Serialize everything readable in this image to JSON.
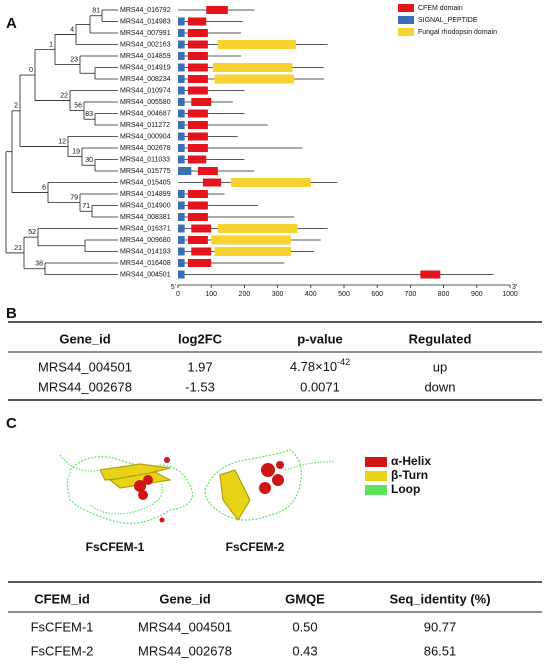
{
  "panel_labels": [
    "A",
    "B",
    "C"
  ],
  "chart_data": {
    "type": "domain",
    "genes": [
      "MRS44_016792",
      "MRS44_014983",
      "MRS44_007991",
      "MRS44_002163",
      "MRS44_014859",
      "MRS44_014919",
      "MRS44_008234",
      "MRS44_010974",
      "MRS44_005580",
      "MRS44_004687",
      "MRS44_011272",
      "MRS44_000904",
      "MRS44_002678",
      "MRS44_011033",
      "MRS44_015775",
      "MRS44_015405",
      "MRS44_014899",
      "MRS44_014900",
      "MRS44_008381",
      "MRS44_016371",
      "MRS44_009680",
      "MRS44_014193",
      "MRS44_016408",
      "MRS44_004501"
    ],
    "lengths": [
      230,
      195,
      190,
      450,
      190,
      440,
      440,
      200,
      165,
      200,
      270,
      180,
      375,
      200,
      230,
      480,
      140,
      240,
      350,
      450,
      430,
      410,
      320,
      950
    ],
    "series": [
      {
        "name": "CFEM domain",
        "color": "#e3141b",
        "values": [
          [
            85,
            150
          ],
          [
            30,
            85
          ],
          [
            30,
            90
          ],
          [
            30,
            90
          ],
          [
            30,
            90
          ],
          [
            30,
            90
          ],
          [
            30,
            90
          ],
          [
            30,
            90
          ],
          [
            40,
            100
          ],
          [
            30,
            90
          ],
          [
            30,
            90
          ],
          [
            30,
            90
          ],
          [
            30,
            90
          ],
          [
            30,
            85
          ],
          [
            60,
            120
          ],
          [
            75,
            130
          ],
          [
            30,
            90
          ],
          [
            30,
            90
          ],
          [
            30,
            90
          ],
          [
            40,
            100
          ],
          [
            30,
            90
          ],
          [
            40,
            100
          ],
          [
            30,
            100
          ],
          [
            730,
            790
          ]
        ]
      },
      {
        "name": "SIGNAL_PEPTIDE",
        "color": "#3a6fb5",
        "values": [
          null,
          [
            0,
            20
          ],
          [
            0,
            20
          ],
          [
            0,
            20
          ],
          [
            0,
            20
          ],
          [
            0,
            20
          ],
          [
            0,
            20
          ],
          [
            0,
            20
          ],
          [
            0,
            20
          ],
          [
            0,
            20
          ],
          [
            0,
            20
          ],
          [
            0,
            20
          ],
          [
            0,
            20
          ],
          [
            0,
            20
          ],
          [
            0,
            40
          ],
          null,
          [
            0,
            20
          ],
          [
            0,
            20
          ],
          [
            0,
            20
          ],
          [
            0,
            20
          ],
          [
            0,
            20
          ],
          [
            0,
            20
          ],
          [
            0,
            20
          ],
          [
            0,
            20
          ]
        ]
      },
      {
        "name": "Fungal rhodopsin domain",
        "color": "#f7d330",
        "values": [
          null,
          null,
          null,
          [
            120,
            355
          ],
          null,
          [
            105,
            345
          ],
          [
            110,
            350
          ],
          null,
          null,
          null,
          null,
          null,
          null,
          null,
          null,
          [
            160,
            400
          ],
          null,
          null,
          null,
          [
            120,
            360
          ],
          [
            100,
            340
          ],
          [
            110,
            340
          ],
          null,
          null
        ]
      }
    ],
    "bootstrap": [
      81,
      4,
      23,
      1,
      22,
      56,
      83,
      0,
      12,
      19,
      30,
      2,
      6,
      79,
      71,
      52,
      21,
      38
    ],
    "xlim": [
      0,
      1000
    ],
    "xticks": [
      0,
      100,
      200,
      300,
      400,
      500,
      600,
      700,
      800,
      900,
      1000
    ],
    "end_labels": [
      "5'",
      "3'"
    ]
  },
  "table_b": {
    "header": [
      "Gene_id",
      "log2FC",
      "p-value",
      "Regulated"
    ],
    "rows": [
      [
        "MRS44_004501",
        "1.97",
        {
          "base": "4.78×10",
          "exponent": "-42"
        },
        "up"
      ],
      [
        "MRS44_002678",
        "-1.53",
        "0.0071",
        "down"
      ]
    ]
  },
  "structures": {
    "names": [
      "FsCFEM-1",
      "FsCFEM-2"
    ],
    "legend": [
      {
        "label": "α-Helix",
        "color": "#d01515"
      },
      {
        "label": "β-Turn",
        "color": "#e8d416"
      },
      {
        "label": "Loop",
        "color": "#5fe35f"
      }
    ]
  },
  "table_c": {
    "header": [
      "CFEM_id",
      "Gene_id",
      "GMQE",
      "Seq_identity (%)"
    ],
    "rows": [
      [
        "FsCFEM-1",
        "MRS44_004501",
        "0.50",
        "90.77"
      ],
      [
        "FsCFEM-2",
        "MRS44_002678",
        "0.43",
        "86.51"
      ]
    ]
  }
}
